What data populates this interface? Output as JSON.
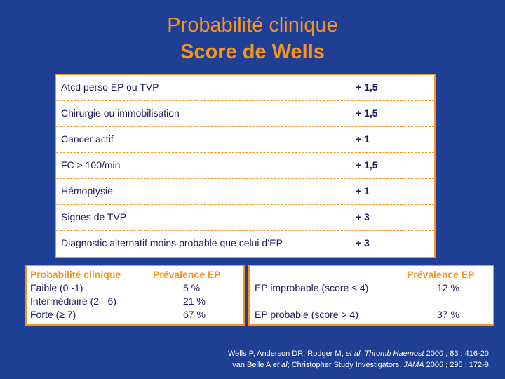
{
  "title": "Probabilité clinique",
  "subtitle": "Score de Wells",
  "colors": {
    "background": "#1f3f95",
    "accent": "#f7941d",
    "text_dark": "#1a1a5e"
  },
  "criteria": [
    {
      "label": "Atcd perso EP ou TVP",
      "score": "+ 1,5"
    },
    {
      "label": "Chirurgie ou immobilisation",
      "score": "+ 1,5"
    },
    {
      "label": "Cancer actif",
      "score": "+ 1"
    },
    {
      "label": "FC > 100/min",
      "score": "+ 1,5"
    },
    {
      "label": "Hémoptysie",
      "score": "+ 1"
    },
    {
      "label": "Signes de TVP",
      "score": "+ 3"
    },
    {
      "label": "Diagnostic alternatif moins probable que celui d’EP",
      "score": "+ 3"
    }
  ],
  "three_level": {
    "header_probability": "Probabilité clinique",
    "header_prevalence": "Prévalence EP",
    "rows": [
      {
        "level": "Faible  (0 -1)",
        "prevalence": "5 %"
      },
      {
        "level": "Intermédiaire (2 - 6)",
        "prevalence": "21 %"
      },
      {
        "level": "Forte (≥ 7)",
        "prevalence": "67 %"
      }
    ]
  },
  "two_level": {
    "header_prevalence": "Prévalence EP",
    "rows": [
      {
        "level": "EP improbable (score ≤  4)",
        "prevalence": "12 %"
      },
      {
        "level": "EP probable (score > 4)",
        "prevalence": "37 %"
      }
    ]
  },
  "references": {
    "ref1_authors": "Wells P,  Anderson DR, Rodger M, ",
    "ref1_etal": "et al.",
    "ref1_journal": " Thromb Haemost",
    "ref1_details": " 2000 ;  83 : 416-20.",
    "ref2_authors": "van Belle A ",
    "ref2_etal": "et al",
    "ref2_group": "; Christopher Study Investigators. ",
    "ref2_journal": "JAMA",
    "ref2_details": " 2006 ; 295 : 172-9."
  }
}
